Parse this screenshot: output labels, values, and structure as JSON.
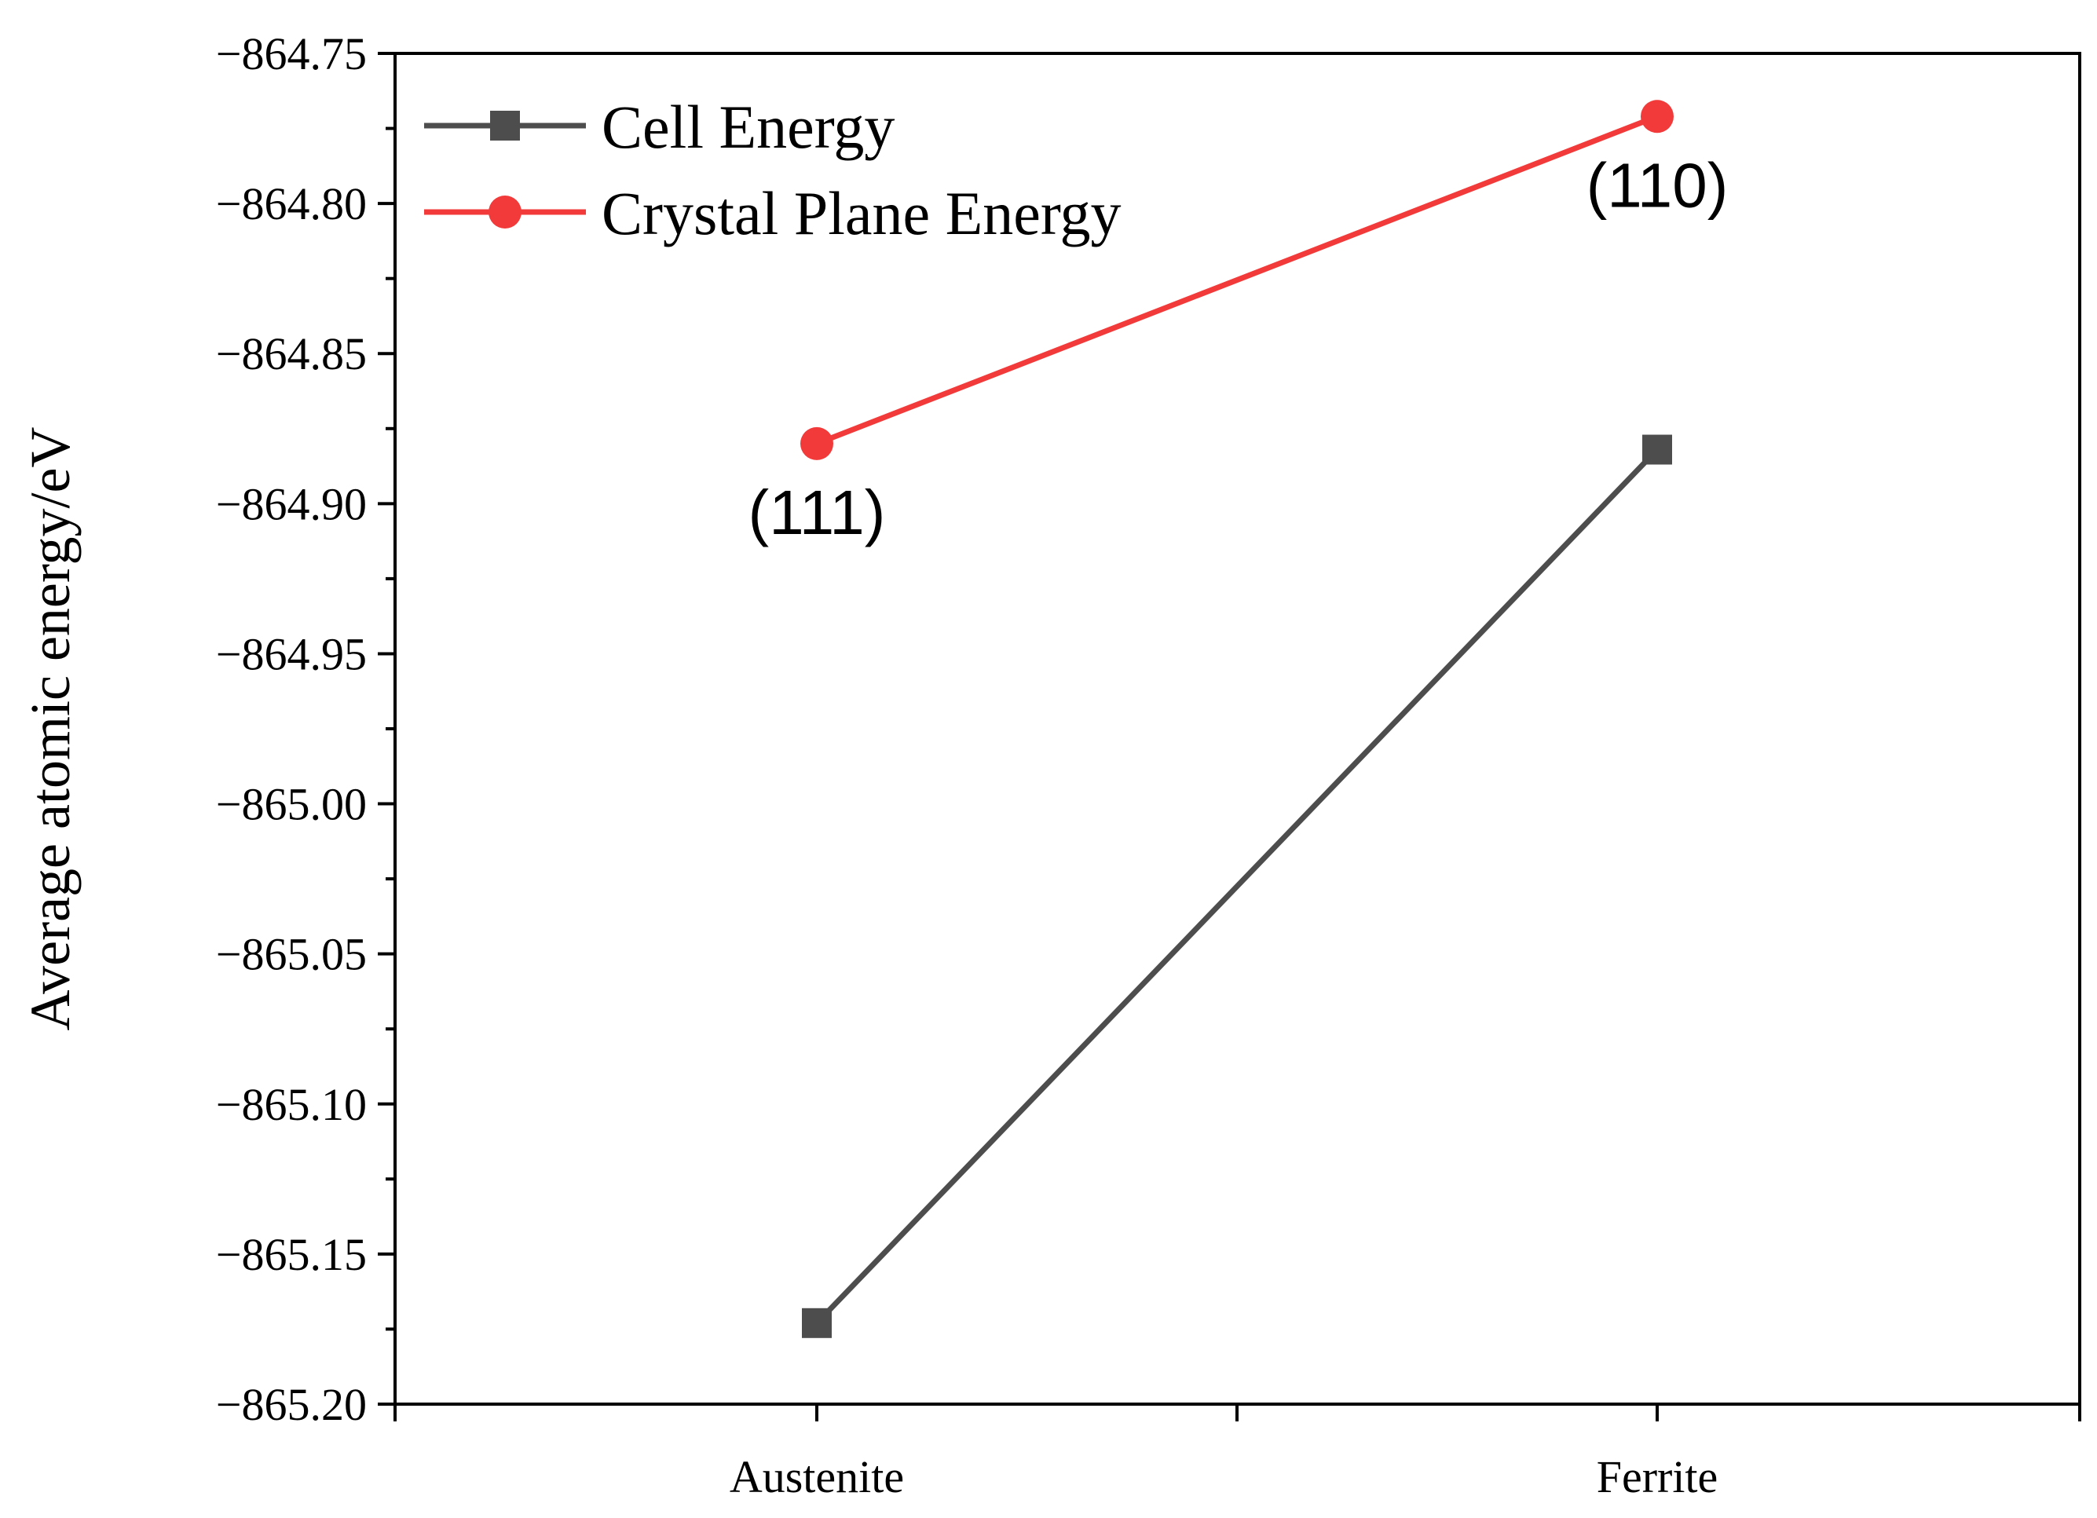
{
  "chart_data": {
    "type": "line",
    "title": "",
    "xlabel": "",
    "ylabel": "Average atomic energy/eV",
    "categories": [
      "Austenite",
      "Ferrite"
    ],
    "ylim": [
      -865.2,
      -864.75
    ],
    "yticks": [
      "−864.75",
      "−864.80",
      "−864.85",
      "−864.90",
      "−864.95",
      "−865.00",
      "−865.05",
      "−865.10",
      "−865.15",
      "−865.20"
    ],
    "grid": false,
    "legend_position": "top-left",
    "series": [
      {
        "name": "Cell Energy",
        "color": "#4d4d4d",
        "marker": "square",
        "values": [
          -865.173,
          -864.882
        ]
      },
      {
        "name": "Crystal Plane Energy",
        "color": "#f23a3a",
        "marker": "circle",
        "values": [
          -864.88,
          -864.771
        ]
      }
    ],
    "annotations": [
      {
        "text": "(111)",
        "category": "Austenite",
        "series": "Crystal Plane Energy",
        "placement": "below"
      },
      {
        "text": "(110)",
        "category": "Ferrite",
        "series": "Crystal Plane Energy",
        "placement": "below"
      }
    ]
  }
}
